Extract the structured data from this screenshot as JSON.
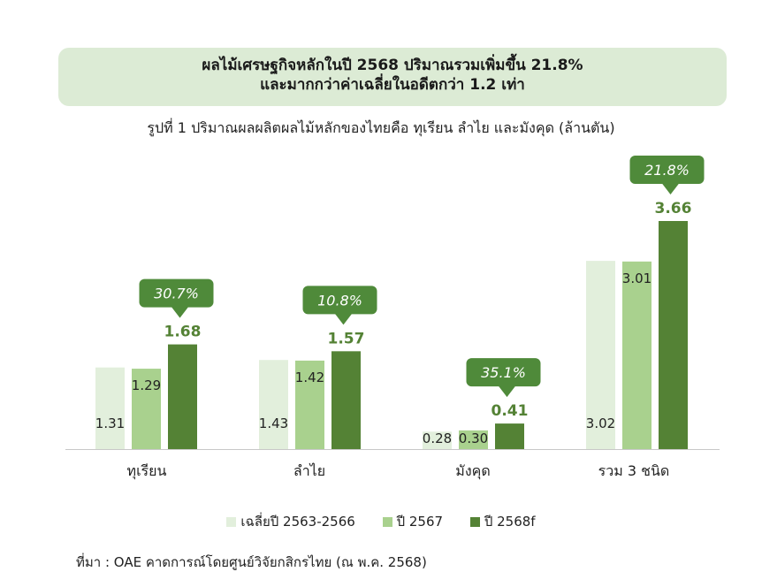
{
  "banner": {
    "line1": "ผลไม้เศรษฐกิจหลักในปี 2568 ปริมาณรวมเพิ่มขึ้น 21.8%",
    "line2": "และมากกว่าค่าเฉลี่ยในอดีตกว่า 1.2 เท่า"
  },
  "colors": {
    "banner_bg": "#dcebd5",
    "bubble": "#4f8a3a"
  },
  "chart_data": {
    "type": "bar",
    "title": "รูปที่ 1 ปริมาณผลผลิตผลไม้หลักของไทยคือ ทุเรียน ลำไย และมังคุด (ล้านตัน)",
    "categories": [
      "ทุเรียน",
      "ลำไย",
      "มังคุด",
      "รวม 3 ชนิด"
    ],
    "series": [
      {
        "name": "เฉลี่ยปี 2563-2566",
        "color": "#e2efdc",
        "values": [
          1.31,
          1.43,
          0.28,
          3.02
        ],
        "labels": [
          "1.31",
          "1.43",
          "0.28",
          "3.02"
        ]
      },
      {
        "name": "ปี 2567",
        "color": "#a9d18e",
        "values": [
          1.29,
          1.42,
          0.3,
          3.01
        ],
        "labels": [
          "1.29",
          "1.42",
          "0.30",
          "3.01"
        ]
      },
      {
        "name": "ปี 2568f",
        "color": "#548235",
        "values": [
          1.68,
          1.57,
          0.41,
          3.66
        ],
        "labels": [
          "1.68",
          "1.57",
          "0.41",
          "3.66"
        ]
      }
    ],
    "growth_labels": [
      "30.7%",
      "10.8%",
      "35.1%",
      "21.8%"
    ],
    "ylim": [
      0,
      3.66
    ],
    "xlabel": "",
    "ylabel": "",
    "grid": false,
    "legend_position": "bottom"
  },
  "source": "ที่มา : OAE คาดการณ์โดยศูนย์วิจัยกสิกรไทย (ณ พ.ค. 2568)"
}
